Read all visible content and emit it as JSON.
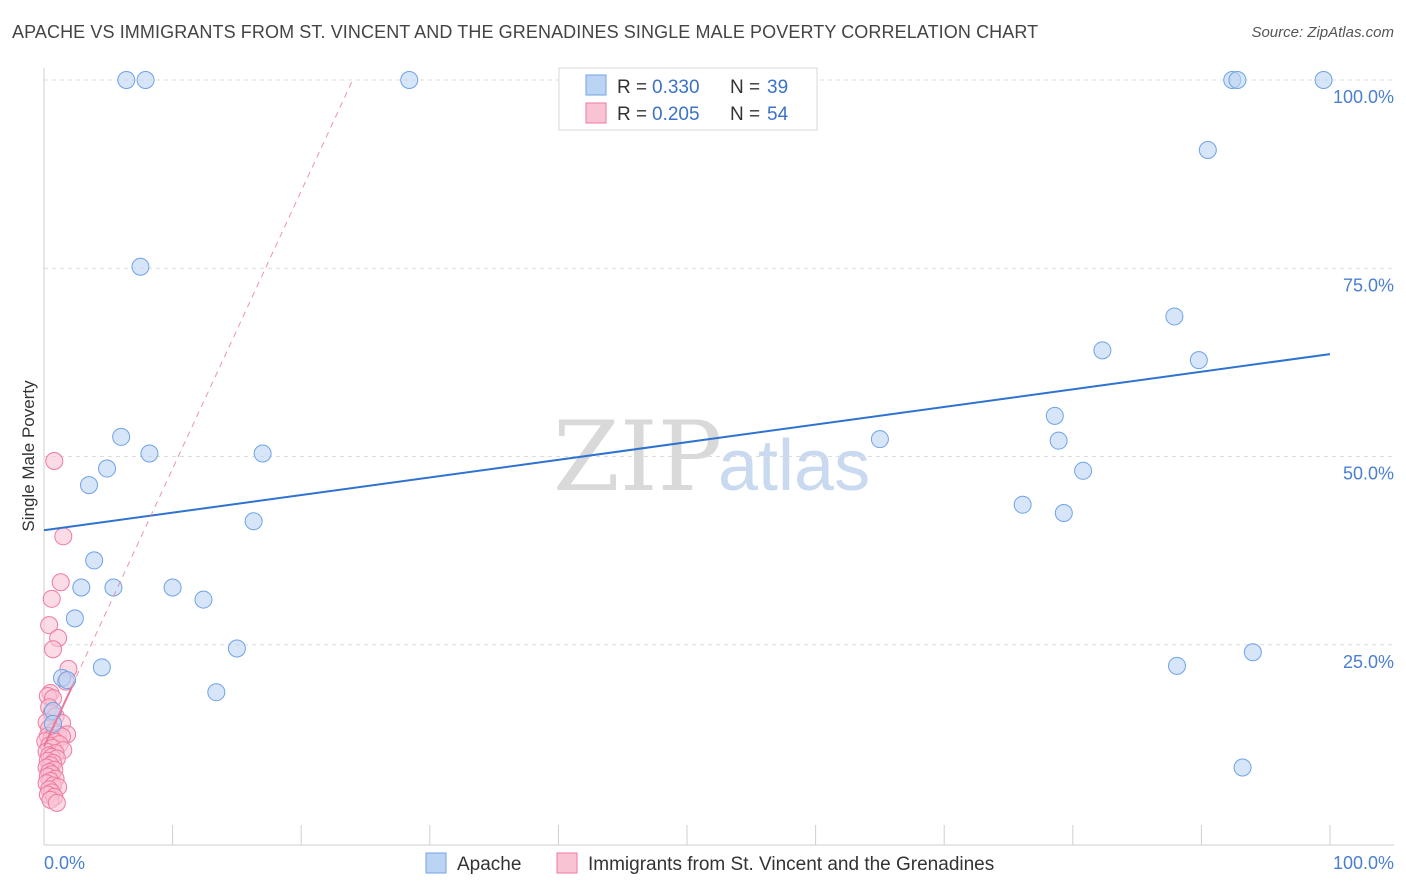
{
  "header": {
    "title": "APACHE VS IMMIGRANTS FROM ST. VINCENT AND THE GRENADINES SINGLE MALE POVERTY CORRELATION CHART",
    "source": "Source: ZipAtlas.com"
  },
  "colors": {
    "series_a": "#6fa3e6",
    "series_a_fill": "#bcd4f3",
    "series_b": "#f07aa0",
    "series_b_fill": "#f8c3d3",
    "trend_a": "#2f73d0",
    "trend_b": "#e8799c",
    "tick_text": "#4a7fd0"
  },
  "watermark": {
    "left": "ZIP",
    "right": "atlas"
  },
  "stats": {
    "series_a": {
      "r_label": "R = ",
      "r_value": "0.330",
      "n_label": "N = ",
      "n_value": "39"
    },
    "series_b": {
      "r_label": "R = ",
      "r_value": "0.205",
      "n_label": "N = ",
      "n_value": "54"
    }
  },
  "legend": {
    "series_a": "Apache",
    "series_b": "Immigrants from St. Vincent and the Grenadines"
  },
  "chart_data": {
    "type": "scatter",
    "title": "APACHE VS IMMIGRANTS FROM ST. VINCENT AND THE GRENADINES SINGLE MALE POVERTY CORRELATION CHART",
    "xlabel": "",
    "ylabel": "Single Male Poverty",
    "xlim": [
      0,
      100
    ],
    "ylim": [
      0,
      100
    ],
    "x_tick_labels": [
      "0.0%",
      "100.0%"
    ],
    "y_ticks": [
      25,
      50,
      75,
      100
    ],
    "y_tick_labels": [
      "25.0%",
      "50.0%",
      "75.0%",
      "100.0%"
    ],
    "grid": true,
    "series": [
      {
        "name": "Apache",
        "r": 0.33,
        "n": 39,
        "trend": {
          "x": [
            0,
            100
          ],
          "y": [
            40.2,
            63.6
          ]
        },
        "points": [
          [
            6.4,
            100
          ],
          [
            7.9,
            100
          ],
          [
            28.4,
            100
          ],
          [
            92.4,
            100
          ],
          [
            92.8,
            100
          ],
          [
            99.5,
            100
          ],
          [
            90.5,
            90.7
          ],
          [
            7.5,
            75.2
          ],
          [
            87.9,
            68.6
          ],
          [
            82.3,
            64.1
          ],
          [
            89.8,
            62.8
          ],
          [
            6.0,
            52.6
          ],
          [
            8.2,
            50.4
          ],
          [
            17.0,
            50.4
          ],
          [
            65.0,
            52.3
          ],
          [
            78.6,
            55.4
          ],
          [
            78.9,
            52.1
          ],
          [
            80.8,
            48.1
          ],
          [
            4.9,
            48.4
          ],
          [
            3.5,
            46.2
          ],
          [
            76.1,
            43.6
          ],
          [
            79.3,
            42.5
          ],
          [
            16.3,
            41.4
          ],
          [
            3.9,
            36.2
          ],
          [
            2.9,
            32.6
          ],
          [
            5.4,
            32.6
          ],
          [
            10.0,
            32.6
          ],
          [
            12.4,
            31.0
          ],
          [
            2.4,
            28.5
          ],
          [
            15.0,
            24.5
          ],
          [
            4.5,
            22.0
          ],
          [
            88.1,
            22.2
          ],
          [
            94.0,
            24.0
          ],
          [
            13.4,
            18.7
          ],
          [
            1.4,
            20.6
          ],
          [
            1.8,
            20.3
          ],
          [
            0.7,
            16.2
          ],
          [
            0.7,
            14.5
          ],
          [
            93.2,
            8.7
          ]
        ]
      },
      {
        "name": "Immigrants from St. Vincent and the Grenadines",
        "r": 0.205,
        "n": 54,
        "trend": {
          "x": [
            0,
            24
          ],
          "y": [
            11.5,
            100
          ]
        },
        "points": [
          [
            0.8,
            49.4
          ],
          [
            1.5,
            39.4
          ],
          [
            1.3,
            33.3
          ],
          [
            0.6,
            31.1
          ],
          [
            0.4,
            27.6
          ],
          [
            1.1,
            25.9
          ],
          [
            0.7,
            24.4
          ],
          [
            1.9,
            21.8
          ],
          [
            1.7,
            20.1
          ],
          [
            0.5,
            18.6
          ],
          [
            0.3,
            18.2
          ],
          [
            0.7,
            17.9
          ],
          [
            0.4,
            16.7
          ],
          [
            0.6,
            15.9
          ],
          [
            0.9,
            15.5
          ],
          [
            0.2,
            14.7
          ],
          [
            1.4,
            14.6
          ],
          [
            0.4,
            13.9
          ],
          [
            0.8,
            13.5
          ],
          [
            1.1,
            13.1
          ],
          [
            1.8,
            13.1
          ],
          [
            0.3,
            12.9
          ],
          [
            1.4,
            12.8
          ],
          [
            0.6,
            12.6
          ],
          [
            0.1,
            12.2
          ],
          [
            0.9,
            12.1
          ],
          [
            1.2,
            11.8
          ],
          [
            0.4,
            11.6
          ],
          [
            0.7,
            11.3
          ],
          [
            1.5,
            11.0
          ],
          [
            0.2,
            10.8
          ],
          [
            0.9,
            10.6
          ],
          [
            0.4,
            10.3
          ],
          [
            0.6,
            10.1
          ],
          [
            1.0,
            9.9
          ],
          [
            0.3,
            9.6
          ],
          [
            0.7,
            9.3
          ],
          [
            0.5,
            9.0
          ],
          [
            0.2,
            8.7
          ],
          [
            0.8,
            8.4
          ],
          [
            0.4,
            8.1
          ],
          [
            0.6,
            7.8
          ],
          [
            0.3,
            7.5
          ],
          [
            0.9,
            7.2
          ],
          [
            0.5,
            6.9
          ],
          [
            0.2,
            6.6
          ],
          [
            0.7,
            6.3
          ],
          [
            1.1,
            6.1
          ],
          [
            0.4,
            5.8
          ],
          [
            0.6,
            5.4
          ],
          [
            0.3,
            5.1
          ],
          [
            0.8,
            4.8
          ],
          [
            0.5,
            4.4
          ],
          [
            1.0,
            4.0
          ]
        ]
      }
    ]
  }
}
